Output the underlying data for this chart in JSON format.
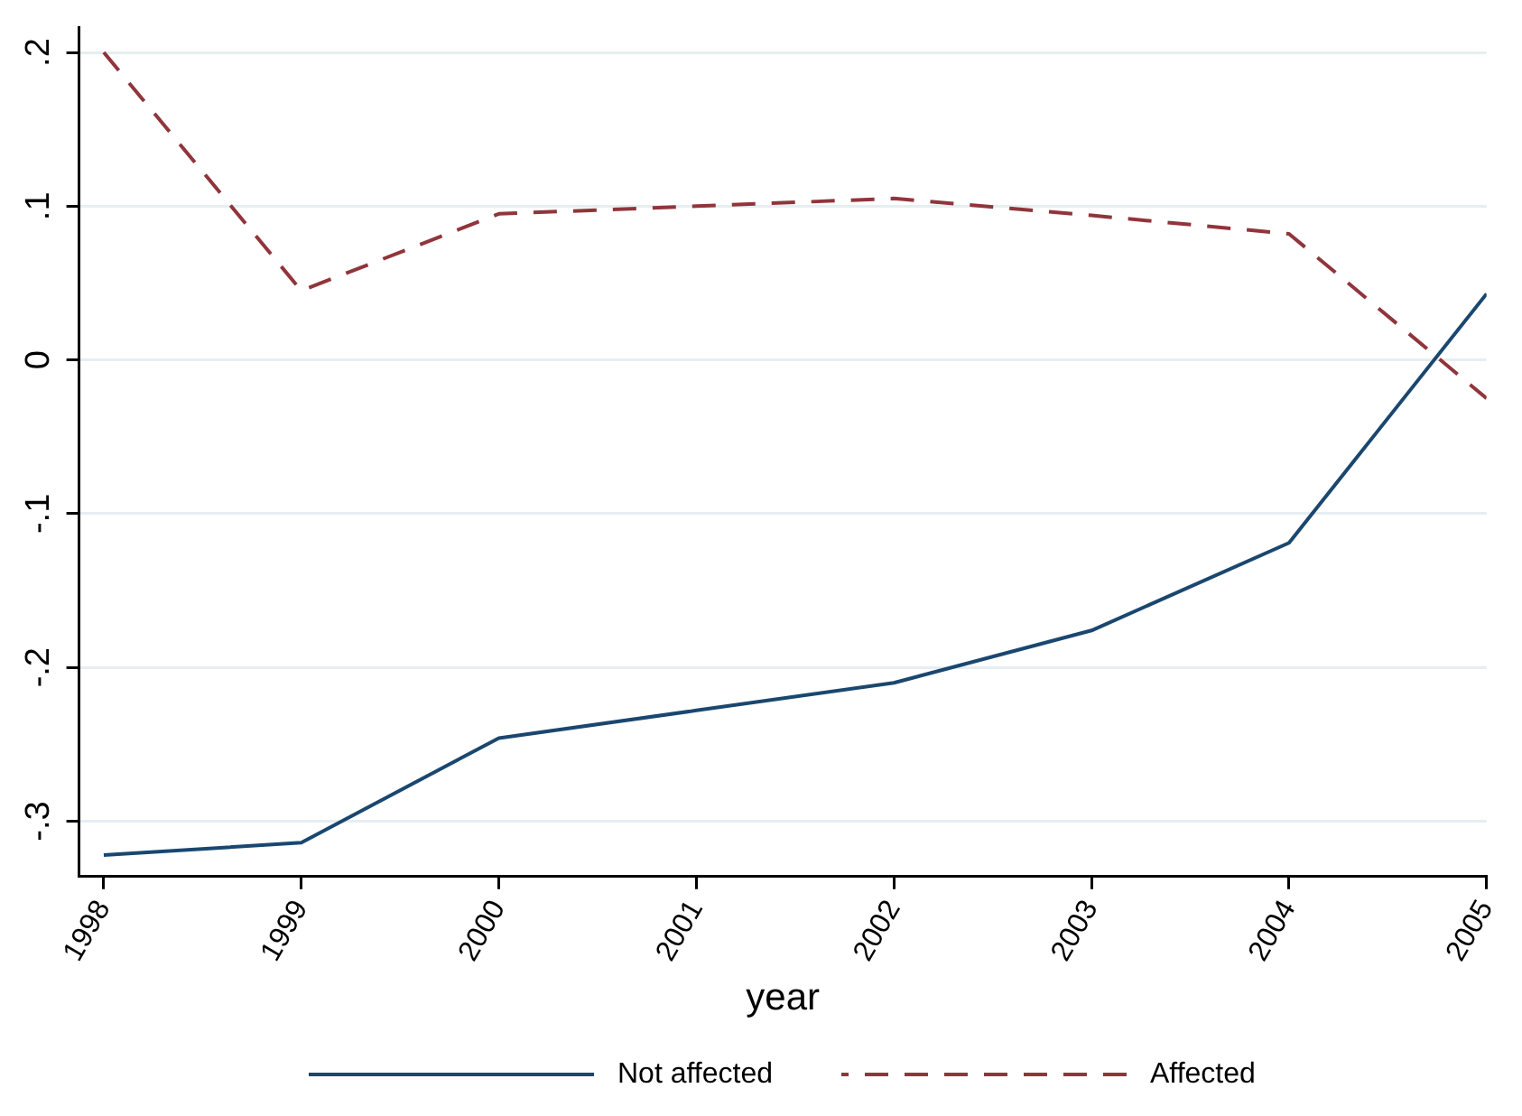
{
  "chart_data": {
    "type": "line",
    "xlabel": "year",
    "x": [
      1998,
      1999,
      2000,
      2001,
      2002,
      2003,
      2004,
      2005
    ],
    "series": [
      {
        "name": "Not affected",
        "color": "#1a476f",
        "line_style": "solid",
        "values": [
          -0.322,
          -0.314,
          -0.246,
          -0.228,
          -0.21,
          -0.176,
          -0.119,
          0.043
        ]
      },
      {
        "name": "Affected",
        "color": "#90353b",
        "line_style": "dashed",
        "values": [
          0.2,
          0.045,
          0.095,
          0.1,
          0.105,
          0.094,
          0.082,
          -0.025
        ]
      }
    ],
    "xlim": [
      1997.875,
      2005
    ],
    "xticks": [
      1998,
      1999,
      2000,
      2001,
      2002,
      2003,
      2004,
      2005
    ],
    "ylim": [
      -0.336,
      0.216
    ],
    "yticks": [
      {
        "value": 0.2,
        "label": ".2"
      },
      {
        "value": 0.1,
        "label": ".1"
      },
      0,
      {
        "value": -0.1,
        "label": "-.1"
      },
      {
        "value": -0.2,
        "label": "-.2"
      },
      {
        "value": -0.3,
        "label": "-.3"
      }
    ],
    "grid": "y",
    "legend": "bottom",
    "marker": "none"
  }
}
